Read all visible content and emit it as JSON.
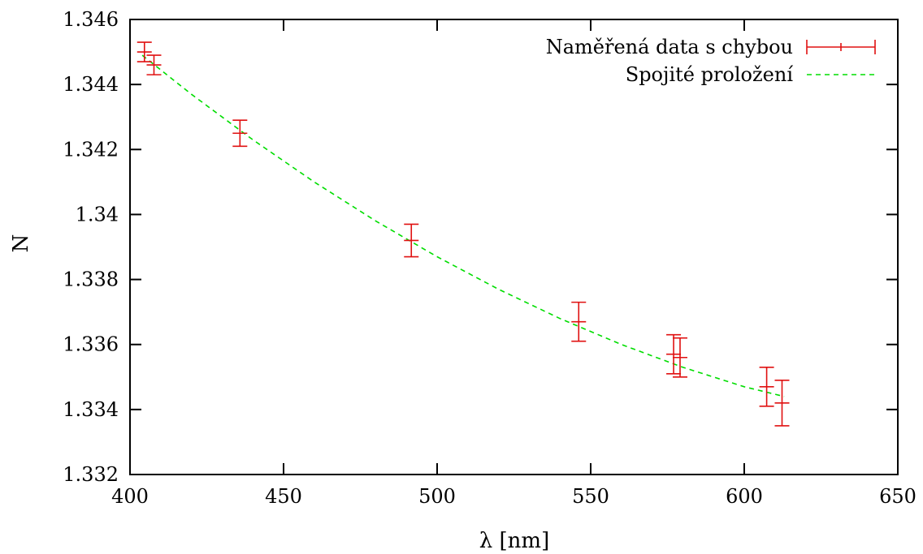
{
  "chart_data": {
    "type": "scatter",
    "xlabel": "λ [nm]",
    "ylabel": "N",
    "xlim": [
      400,
      650
    ],
    "ylim": [
      1.332,
      1.346
    ],
    "x_ticks": [
      "400",
      "450",
      "500",
      "550",
      "600",
      "650"
    ],
    "y_ticks": [
      "1.332",
      "1.334",
      "1.336",
      "1.338",
      "1.34",
      "1.342",
      "1.344",
      "1.346"
    ],
    "grid": false,
    "legend_position": "top-right",
    "series": [
      {
        "name": "Naměřená data s chybou",
        "kind": "errorbar",
        "color": "#e01010",
        "points": [
          {
            "x": 404.7,
            "y": 1.345,
            "err": 0.0003
          },
          {
            "x": 407.8,
            "y": 1.3446,
            "err": 0.0003
          },
          {
            "x": 435.8,
            "y": 1.3425,
            "err": 0.0004
          },
          {
            "x": 491.6,
            "y": 1.3392,
            "err": 0.0005
          },
          {
            "x": 546.1,
            "y": 1.3367,
            "err": 0.0006
          },
          {
            "x": 577.0,
            "y": 1.3357,
            "err": 0.0006
          },
          {
            "x": 579.1,
            "y": 1.3356,
            "err": 0.0006
          },
          {
            "x": 607.3,
            "y": 1.3347,
            "err": 0.0006
          },
          {
            "x": 612.3,
            "y": 1.3342,
            "err": 0.0007
          }
        ]
      },
      {
        "name": "Spojité proložení",
        "kind": "line",
        "style": "dashed",
        "color": "#00dd00",
        "x": [
          404,
          420,
          440,
          460,
          480,
          500,
          520,
          540,
          560,
          580,
          600,
          613
        ],
        "y": [
          1.3449,
          1.3437,
          1.3423,
          1.341,
          1.3398,
          1.3387,
          1.3377,
          1.3368,
          1.336,
          1.3353,
          1.3347,
          1.3344
        ]
      }
    ]
  }
}
